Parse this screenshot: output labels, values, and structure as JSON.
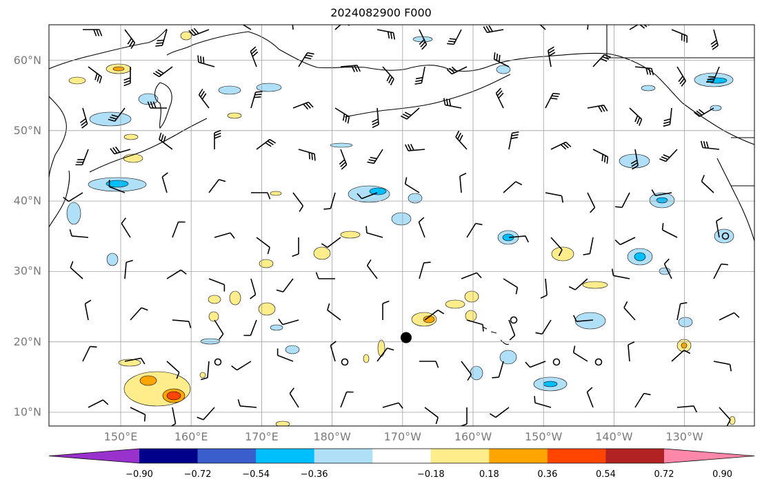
{
  "title": "2024082900 F000",
  "map": {
    "lat_labels": [
      {
        "lat": 60,
        "label": "60°N"
      },
      {
        "lat": 50,
        "label": "50°N"
      },
      {
        "lat": 40,
        "label": "40°N"
      },
      {
        "lat": 30,
        "label": "30°N"
      },
      {
        "lat": 20,
        "label": "20°N"
      },
      {
        "lat": 10,
        "label": "10°N"
      }
    ],
    "lon_labels": [
      {
        "lon": 150,
        "label": "150°E"
      },
      {
        "lon": 160,
        "label": "160°E"
      },
      {
        "lon": 170,
        "label": "170°E"
      },
      {
        "lon": 180,
        "label": "180°W"
      },
      {
        "lon": 190,
        "label": "170°W"
      },
      {
        "lon": 200,
        "label": "160°W"
      },
      {
        "lon": 210,
        "label": "150°W"
      },
      {
        "lon": 220,
        "label": "140°W"
      },
      {
        "lon": 230,
        "label": "130°W"
      }
    ],
    "marker": {
      "lon": 190.5,
      "lat": 20.6,
      "symbol": "filled-circle"
    }
  },
  "colorbar": {
    "colors": [
      "#9932cc",
      "#00008b",
      "#3a5fcd",
      "#00bfff",
      "#b0e0f8",
      "#ffffff",
      "#ffec8b",
      "#ffa500",
      "#ff4500",
      "#b22222",
      "#ff88aa"
    ],
    "labels": [
      "−0.90",
      "−0.72",
      "−0.54",
      "−0.36",
      "−0.18",
      "0.18",
      "0.36",
      "0.54",
      "0.72",
      "0.90"
    ]
  }
}
